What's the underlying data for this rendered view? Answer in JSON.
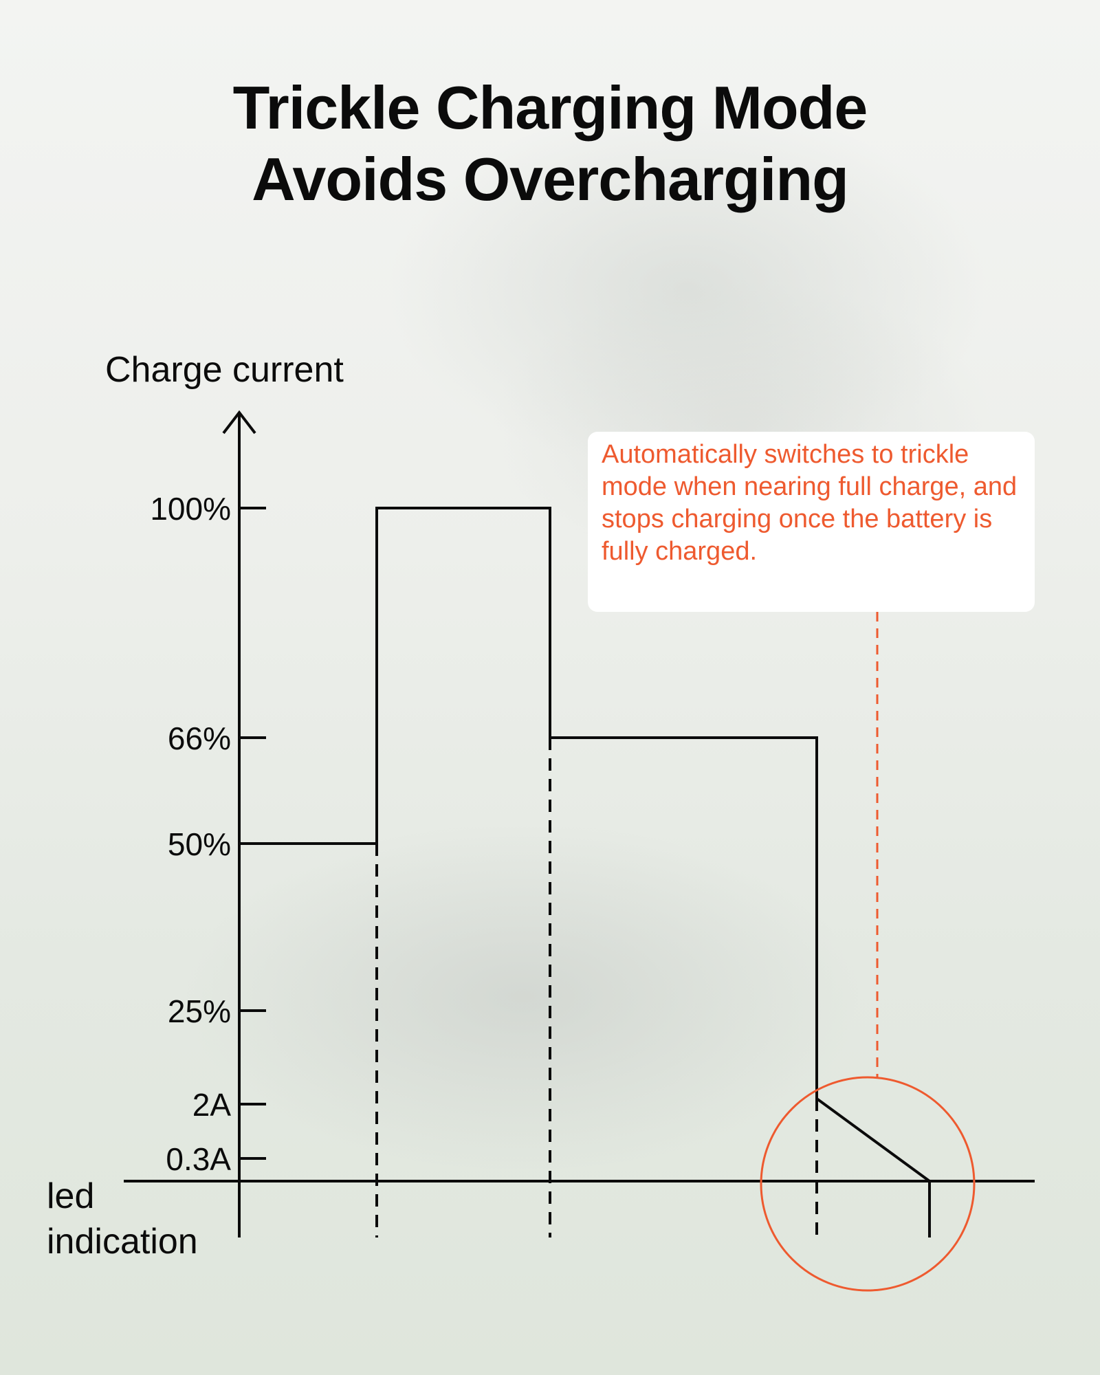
{
  "title_lines": [
    "Trickle Charging Mode",
    "Avoids Overcharging"
  ],
  "callout_text": "Automatically switches to trickle mode when nearing full charge, and stops charging once the battery is fully charged.",
  "colors": {
    "accent": "#ee5a2f",
    "line": "#0b0b0b"
  },
  "chart_data": {
    "type": "line",
    "title": "Trickle Charging Mode Avoids Overcharging",
    "ylabel": "Charge current",
    "xlabel": "led indication",
    "y_ticks": [
      "100%",
      "66%",
      "50%",
      "25%",
      "2A",
      "0.3A"
    ],
    "grid": false,
    "steps": [
      {
        "stage": 1,
        "level": "50%"
      },
      {
        "stage": 2,
        "level": "100%"
      },
      {
        "stage": 3,
        "level": "66%"
      },
      {
        "stage": 4,
        "level_start": "2A",
        "level_end": "0.3A",
        "note": "trickle mode"
      }
    ]
  }
}
